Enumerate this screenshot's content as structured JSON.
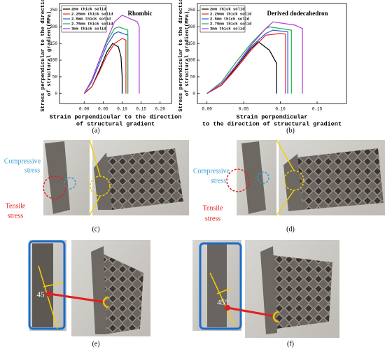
{
  "chart_data": [
    {
      "type": "line",
      "title": "Rhombic",
      "panel_label": "(a)",
      "x_label": [
        "Strain perpendicular to the direction",
        "of structural gradient"
      ],
      "y_label": [
        "Stress perpendicular to the direction",
        "of structural gradient(MPa)"
      ],
      "xlim": [
        -0.065,
        0.23
      ],
      "ylim": [
        -30,
        270
      ],
      "xticks": [
        {
          "value": 0,
          "label": "0.00"
        },
        {
          "value": 0.05,
          "label": "0.05"
        },
        {
          "value": 0.1,
          "label": "0.10"
        },
        {
          "value": 0.15,
          "label": "0.15"
        },
        {
          "value": 0.2,
          "label": "0.20"
        }
      ],
      "yticks": [
        0,
        50,
        100,
        150,
        200,
        250
      ],
      "legend": "upper left",
      "series": [
        {
          "name": "2mm thick solid",
          "color": "#000000",
          "x": [
            0,
            0.02,
            0.04,
            0.06,
            0.075,
            0.09,
            0.097,
            0.1,
            0.1
          ],
          "values": [
            0,
            20,
            70,
            125,
            150,
            140,
            110,
            50,
            0
          ]
        },
        {
          "name": "2.25mm thick solid",
          "color": "#e8262a",
          "x": [
            0,
            0.02,
            0.04,
            0.06,
            0.08,
            0.1,
            0.11,
            0.11
          ],
          "values": [
            0,
            20,
            65,
            115,
            150,
            165,
            160,
            0
          ]
        },
        {
          "name": "2.5mm thick solid",
          "color": "#2a5cd8",
          "x": [
            0,
            0.02,
            0.04,
            0.06,
            0.08,
            0.09,
            0.115,
            0.115
          ],
          "values": [
            0,
            35,
            90,
            145,
            180,
            185,
            175,
            0
          ]
        },
        {
          "name": "2.75mm thick solid",
          "color": "#22b04a",
          "x": [
            0,
            0.02,
            0.04,
            0.06,
            0.08,
            0.09,
            0.115,
            0.115
          ],
          "values": [
            0,
            40,
            100,
            155,
            195,
            200,
            190,
            0
          ]
        },
        {
          "name": "3mm thick solid",
          "color": "#b03ad8",
          "x": [
            0,
            0.02,
            0.04,
            0.06,
            0.08,
            0.1,
            0.14,
            0.145,
            0.145
          ],
          "values": [
            0,
            40,
            100,
            160,
            215,
            235,
            215,
            200,
            0
          ]
        }
      ]
    },
    {
      "type": "line",
      "title": "Derived dodecahedron",
      "panel_label": "(b)",
      "x_label": [
        "Strain perpendicular",
        "to the direction of structural gradient"
      ],
      "y_label": [
        "Stress perpendicular to the direction",
        "of structural gradient(MPa)"
      ],
      "xlim": [
        -0.013,
        0.19
      ],
      "ylim": [
        -30,
        270
      ],
      "xticks": [
        {
          "value": 0,
          "label": "0.00"
        },
        {
          "value": 0.05,
          "label": "0.05"
        },
        {
          "value": 0.1,
          "label": "0.10"
        },
        {
          "value": 0.15,
          "label": "0.15"
        }
      ],
      "yticks": [
        0,
        50,
        100,
        150,
        200,
        250
      ],
      "legend": "upper left",
      "series": [
        {
          "name": "2mm thick solid",
          "color": "#000000",
          "x": [
            0,
            0.02,
            0.04,
            0.06,
            0.07,
            0.085,
            0.095,
            0.095
          ],
          "values": [
            0,
            25,
            80,
            135,
            155,
            130,
            90,
            0
          ]
        },
        {
          "name": "2.25mm thick solid",
          "color": "#e8262a",
          "x": [
            0,
            0.02,
            0.04,
            0.06,
            0.08,
            0.1,
            0.107,
            0.107
          ],
          "values": [
            0,
            25,
            75,
            130,
            175,
            180,
            178,
            0
          ]
        },
        {
          "name": "2.5mm thick solid",
          "color": "#2a5cd8",
          "x": [
            0,
            0.02,
            0.04,
            0.06,
            0.08,
            0.09,
            0.11,
            0.11
          ],
          "values": [
            0,
            30,
            85,
            140,
            180,
            190,
            185,
            0
          ]
        },
        {
          "name": "2.75mm thick solid",
          "color": "#22b04a",
          "x": [
            0,
            0.02,
            0.04,
            0.06,
            0.08,
            0.085,
            0.115,
            0.115
          ],
          "values": [
            0,
            35,
            95,
            150,
            195,
            200,
            190,
            0
          ]
        },
        {
          "name": "3mm thick solid",
          "color": "#b03ad8",
          "x": [
            0,
            0.02,
            0.04,
            0.06,
            0.08,
            0.09,
            0.12,
            0.13,
            0.13
          ],
          "values": [
            0,
            30,
            85,
            145,
            195,
            215,
            205,
            195,
            0
          ]
        }
      ]
    }
  ],
  "photos": {
    "c": {
      "label": "(c)",
      "compressive": [
        "Compressive",
        "stress"
      ],
      "tensile": [
        "Tensile",
        "stress"
      ]
    },
    "d": {
      "label": "(d)",
      "compressive": [
        "Compressive",
        "stress"
      ],
      "tensile": [
        "Tensile",
        "stress"
      ]
    },
    "e": {
      "label": "(e)",
      "angle": "45"
    },
    "f": {
      "label": "(f)",
      "angle": "45°"
    }
  }
}
